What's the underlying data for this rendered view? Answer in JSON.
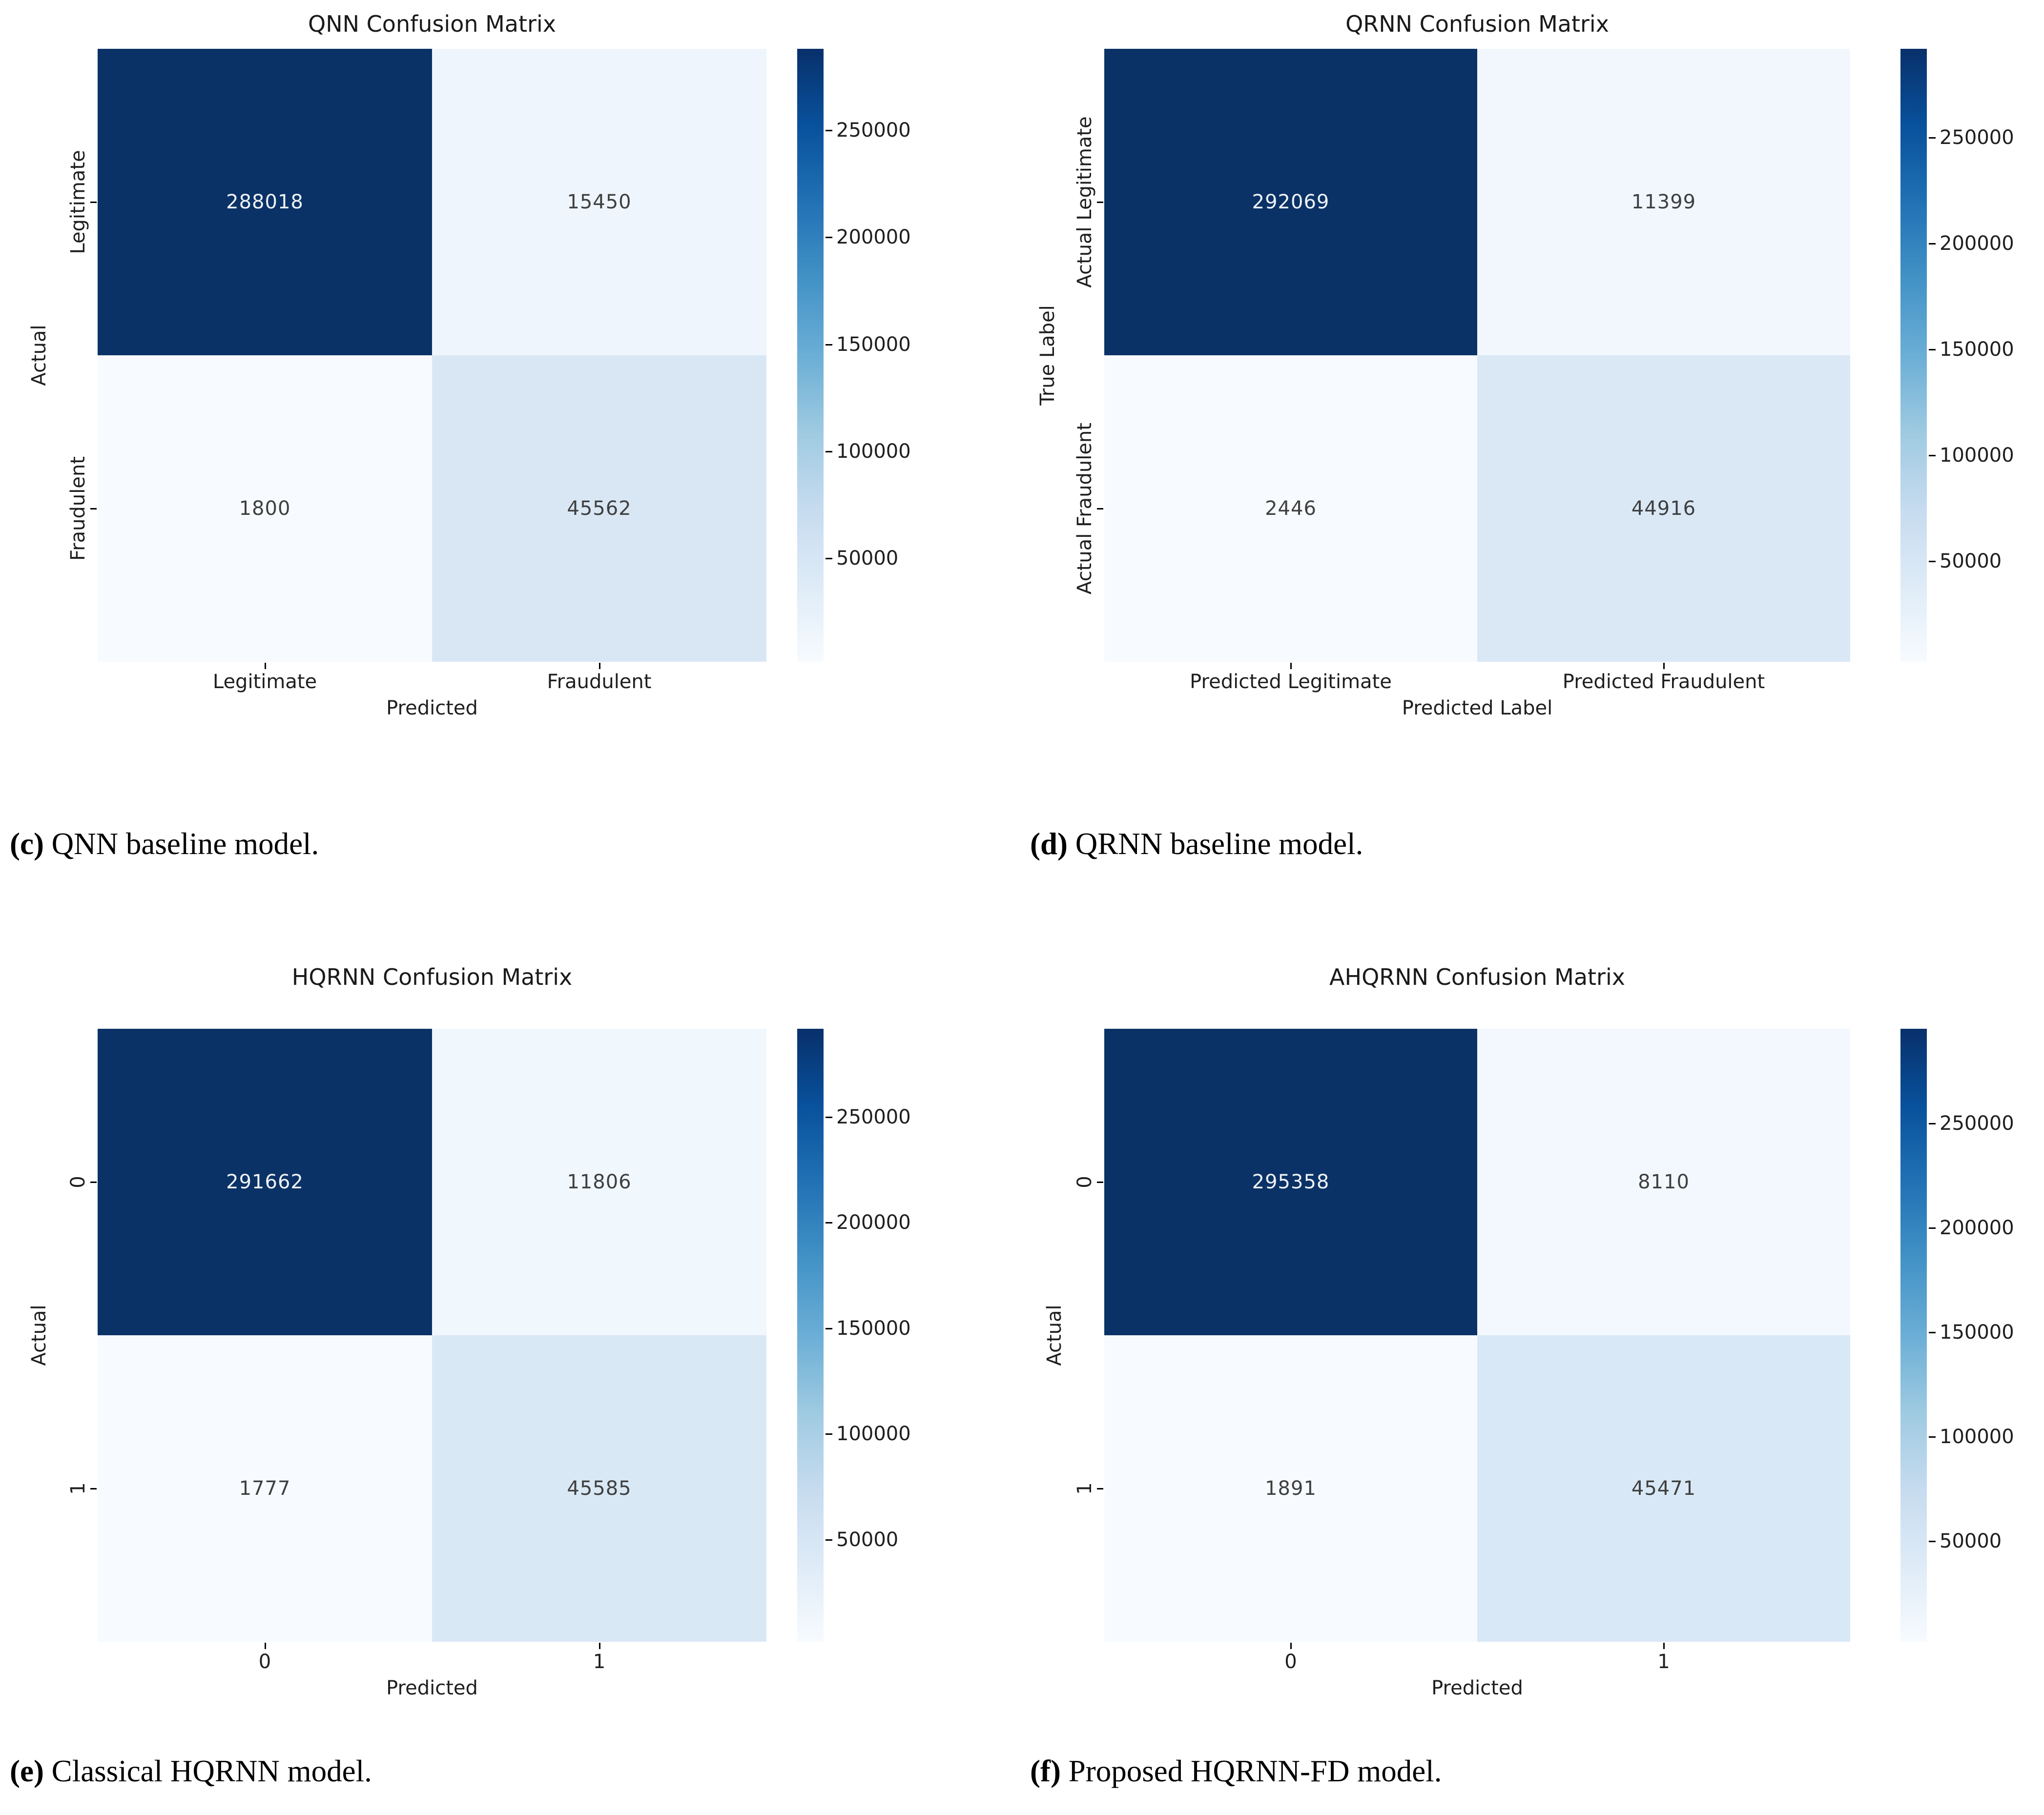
{
  "figure": {
    "background": "#ffffff",
    "colormap_name": "Blues",
    "colormap_stops": [
      "#f7fbff",
      "#deebf7",
      "#c6dbef",
      "#9ecae1",
      "#6baed6",
      "#4292c6",
      "#2171b5",
      "#08519c",
      "#08306b"
    ]
  },
  "chart_data": [
    {
      "type": "heatmap",
      "title": "QNN Confusion Matrix",
      "xlabel": "Predicted",
      "ylabel": "Actual",
      "x_ticklabels": [
        "Legitimate",
        "Fraudulent"
      ],
      "y_ticklabels": [
        "Legitimate",
        "Fraudulent"
      ],
      "matrix": [
        [
          288018,
          15450
        ],
        [
          1800,
          45562
        ]
      ],
      "cell_colors": [
        [
          "#0b3266",
          "#eef5fc"
        ],
        [
          "#f7fbff",
          "#d9e7f5"
        ]
      ],
      "cell_text_colors": [
        [
          "#eef2f7",
          "#3f3f3f"
        ],
        [
          "#3f3f3f",
          "#3f3f3f"
        ]
      ],
      "colorbar": {
        "vmin": 1800,
        "vmax": 288018,
        "ticks": [
          250000,
          200000,
          150000,
          100000,
          50000
        ]
      },
      "caption_bold": "(c)",
      "caption_rest": " QNN baseline model."
    },
    {
      "type": "heatmap",
      "title": "QRNN Confusion Matrix",
      "xlabel": "Predicted Label",
      "ylabel": "True Label",
      "x_ticklabels": [
        "Predicted Legitimate",
        "Predicted Fraudulent"
      ],
      "y_ticklabels": [
        "Actual Legitimate",
        "Actual Fraudulent"
      ],
      "matrix": [
        [
          292069,
          11399
        ],
        [
          2446,
          44916
        ]
      ],
      "cell_colors": [
        [
          "#0b3266",
          "#f1f7fd"
        ],
        [
          "#f7fbff",
          "#dae8f6"
        ]
      ],
      "cell_text_colors": [
        [
          "#eef2f7",
          "#3f3f3f"
        ],
        [
          "#3f3f3f",
          "#3f3f3f"
        ]
      ],
      "colorbar": {
        "vmin": 2446,
        "vmax": 292069,
        "ticks": [
          250000,
          200000,
          150000,
          100000,
          50000
        ]
      },
      "caption_bold": "(d)",
      "caption_rest": " QRNN baseline model."
    },
    {
      "type": "heatmap",
      "title": "HQRNN Confusion Matrix",
      "xlabel": "Predicted",
      "ylabel": "Actual",
      "x_ticklabels": [
        "0",
        "1"
      ],
      "y_ticklabels": [
        "0",
        "1"
      ],
      "matrix": [
        [
          291662,
          11806
        ],
        [
          1777,
          45585
        ]
      ],
      "cell_colors": [
        [
          "#0b3266",
          "#f0f7fd"
        ],
        [
          "#f7fbff",
          "#d9e8f5"
        ]
      ],
      "cell_text_colors": [
        [
          "#eef2f7",
          "#3f3f3f"
        ],
        [
          "#3f3f3f",
          "#3f3f3f"
        ]
      ],
      "colorbar": {
        "vmin": 1777,
        "vmax": 291662,
        "ticks": [
          250000,
          200000,
          150000,
          100000,
          50000
        ]
      },
      "caption_bold": "(e)",
      "caption_rest": " Classical HQRNN model."
    },
    {
      "type": "heatmap",
      "title": "AHQRNN Confusion Matrix",
      "xlabel": "Predicted",
      "ylabel": "Actual",
      "x_ticklabels": [
        "0",
        "1"
      ],
      "y_ticklabels": [
        "0",
        "1"
      ],
      "matrix": [
        [
          295358,
          8110
        ],
        [
          1891,
          45471
        ]
      ],
      "cell_colors": [
        [
          "#0b3266",
          "#f3f8fe"
        ],
        [
          "#f7fbff",
          "#d9e8f6"
        ]
      ],
      "cell_text_colors": [
        [
          "#eef2f7",
          "#3f3f3f"
        ],
        [
          "#3f3f3f",
          "#3f3f3f"
        ]
      ],
      "colorbar": {
        "vmin": 1891,
        "vmax": 295358,
        "ticks": [
          250000,
          200000,
          150000,
          100000,
          50000
        ]
      },
      "caption_bold": "(f)",
      "caption_rest": " Proposed HQRNN-FD model."
    }
  ]
}
